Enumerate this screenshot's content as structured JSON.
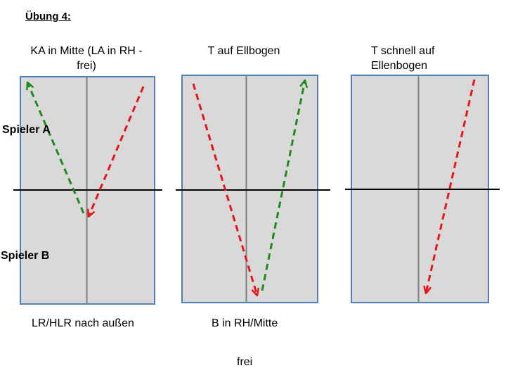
{
  "title": "Übung 4:",
  "players": {
    "a": "Spieler A",
    "b": "Spieler B"
  },
  "drills": [
    {
      "caption_lines": [
        "KA in Mitte (LA in RH -",
        "frei)"
      ],
      "footer": "LR/HLR nach außen"
    },
    {
      "caption_lines": [
        "T auf Ellbogen"
      ],
      "footer": "B in RH/Mitte"
    },
    {
      "caption_lines": [
        "T schnell auf",
        "Ellenbogen"
      ],
      "footer": ""
    }
  ],
  "bottom_note": "frei",
  "colors": {
    "table_fill": "#d9d9d9",
    "table_border": "#4f81bd",
    "center_line": "#808080",
    "net": "#000000",
    "arrow_green": "#1e8a1e",
    "arrow_red": "#e8141b"
  }
}
